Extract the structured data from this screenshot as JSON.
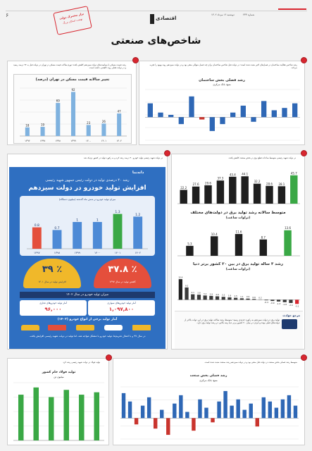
{
  "header": {
    "page_number": "۶",
    "date": "دوشنبه ۱۶ مرداد ۱۴۰۲",
    "issue": "شماره ۲۳۳",
    "logo_text": "اقتصادی",
    "stamp_line1": "بزار مشترک دولت",
    "stamp_line2": "نهضت اسکان بزرگ"
  },
  "page_title": "شاخص‌های صنعتی",
  "p1": {
    "caption": "رشد قیمت مسکن با سیاست‌های دولت سیزدهم کاهش یافت؛ تورم سالانه قیمت مسکن در تهران در دولت قبل به ۹۲ درصد رسید و در دولت فعلی روند کاهشی داشته است.",
    "chart_title": "تغییر سالانه قیمت مسکن در تهران (درصد)",
    "source": "بانک مرکزی"
  },
  "p2": {
    "caption": "رشد شاخص فعالیت ساختمان در فصل‌های اخیر مثبت شده است؛ در دولت قبل شاخص ساختمان برای چند فصل متوالی منفی بود و در دولت سیزدهم روند بهبود را تجربه می‌کند.",
    "chart_title": "رشد فصلی بخش ساختمان",
    "chart_subtitle": "منبع: بانک مرکزی",
    "legend_item": "ساختمان"
  },
  "p3": {
    "caption": "در دولت شهید رئیسی تولید خودرو ۴۰ درصد رشد کرد و به رکورد تولید در کشور نزدیک شد",
    "infographic": {
      "brand": "دانه‌نما",
      "kicker": "رشد ۴۰ درصدی تولید در دولت رئیس جمهور شهید رئیسی",
      "title": "افزایش تولید خودرو در دولت سیزدهم",
      "chart_label": "میزان تولید خودرو در شش ماه گذشته (میلیون دستگاه)",
      "big1_value": "۳۹ ٪",
      "big1_label": "افزایش تولید در سال ۱۴۰۱",
      "big2_value": "۳۷.۸ ٪",
      "big2_label": "کاهش تولید در سال ۱۳۹۷",
      "band_title": "میزان تولید خودرو در سال ۱۴۰۲",
      "stat1_label": "آمار تولید خودروهای سواری",
      "stat1_value": "۱,۰۹۷,۸۰۰",
      "stat2_label": "آمار تولید خودروهای تجاری",
      "stat2_value": "۹۶,۰۰۰",
      "sub_title": "آمار تولید برخی از انواع خودرو (۱۴۰۲)",
      "footer": "در سال ۹۷ و با اعمال تحریم‌ها، تولید خودرو با مشکل مواجه شد، اما تولید در دولت شهید رئیسی افزایش یافت."
    }
  },
  "p4": {
    "caption": "در دولت شهید رئیسی متوسط ساعات قطع برق در بخش صنعت کاهش یافت",
    "chart1_title": "متوسط سالانه رشد تولید برق در دولت‌های مختلف",
    "chart1_sub": "(تراوات ساعت)",
    "chart2_title": "رشد ۳ ساله تولید برق در بین ۲۰ کشور برتر دنیا",
    "chart2_sub": "(تراوات ساعت)",
    "note_title": "مرجع حوادث",
    "note_text": "تولید برق در دولت سیزدهم به رکورد جدیدی رسید؛ متوسط رشد سالانه تولید برق در این دولت بالاتر از دولت‌های قبلی بوده و ایران در میان ۲۰ کشور برتر دنیا رتبه بالایی در رشد تولید برق دارد."
  },
  "p5": {
    "caption": "تولید فولاد در دولت شهید رئیسی رشد کرد",
    "chart_title": "تولید فولاد خام کشور",
    "chart_sub": "میلیون تن"
  },
  "p6": {
    "caption": "متوسط رشد فصلی بخش صنعت در دولت قبل منفی بود و در دولت سیزدهم رشد صنعت مثبت شده است.",
    "chart_title": "رشد فصلی بخش صنعت",
    "chart_sub": "منبع: بانک مرکزی"
  },
  "colors": {
    "accent_red": "#d8262f",
    "infographic_blue": "#2f6fc1",
    "bar_green": "#3aa845",
    "bar_dark": "#1e3a6e"
  },
  "chart_data": [
    {
      "type": "bar",
      "title": "تغییر سالانه قیمت مسکن در تهران (درصد)",
      "categories": [
        "۱۳۹۶",
        "۱۳۹۷",
        "۱۳۹۸",
        "۱۳۹۹",
        "۱۴۰۰",
        "۱۴۰۱",
        "۱۴۰۲"
      ],
      "values": [
        18,
        19,
        69,
        92,
        23,
        26,
        47
      ],
      "ylim": [
        0,
        100
      ]
    },
    {
      "type": "bar",
      "title": "رشد فصلی بخش ساختمان",
      "values": [
        6,
        2,
        1,
        -3,
        9,
        -1,
        -6,
        -3,
        2,
        5,
        -2,
        7,
        3,
        4,
        6
      ],
      "ylim": [
        -10,
        12
      ]
    },
    {
      "type": "bar",
      "title": "میزان تولید خودرو در شش ماه گذشته",
      "categories": [
        "۱۳۹۷",
        "۱۳۹۸",
        "۱۳۹۹",
        "۱۴۰۰",
        "۱۴۰۱",
        "۱۴۰۲"
      ],
      "values": [
        0.8,
        0.7,
        1.0,
        1.0,
        1.3,
        1.2
      ]
    },
    {
      "type": "bar",
      "title": "تولید برق",
      "values": [
        22.2,
        27.6,
        29.6,
        37.3,
        43.4,
        44.1,
        32.2,
        28.6,
        28.1,
        45.7
      ]
    },
    {
      "type": "bar",
      "title": "متوسط سالانه رشد تولید برق در دولت‌های مختلف",
      "values": [
        5.3,
        10.4,
        11.6,
        8.7,
        13.6
      ]
    },
    {
      "type": "bar",
      "title": "رشد ۳ ساله تولید برق در بین ۲۰ کشور برتر دنیا",
      "values": [
        15.4,
        9.2,
        4.1,
        3.8,
        3.2,
        2.9,
        2.6,
        2.2,
        1.8,
        1.5,
        1.1,
        0.9,
        0.6,
        0.2,
        -0.4,
        -0.9,
        -1.3,
        -1.8,
        -2.4,
        -3.1
      ]
    },
    {
      "type": "bar",
      "title": "تولید فولاد خام کشور",
      "values": [
        19,
        22,
        18,
        21,
        19,
        20
      ]
    },
    {
      "type": "bar",
      "title": "رشد فصلی بخش صنعت",
      "values": [
        12,
        8,
        -3,
        6,
        10,
        -5,
        4,
        -8,
        7,
        11,
        3,
        -6,
        9,
        5,
        -2,
        8,
        13,
        6,
        9,
        4,
        7,
        -4,
        10,
        8,
        5,
        9,
        11,
        6
      ]
    }
  ]
}
